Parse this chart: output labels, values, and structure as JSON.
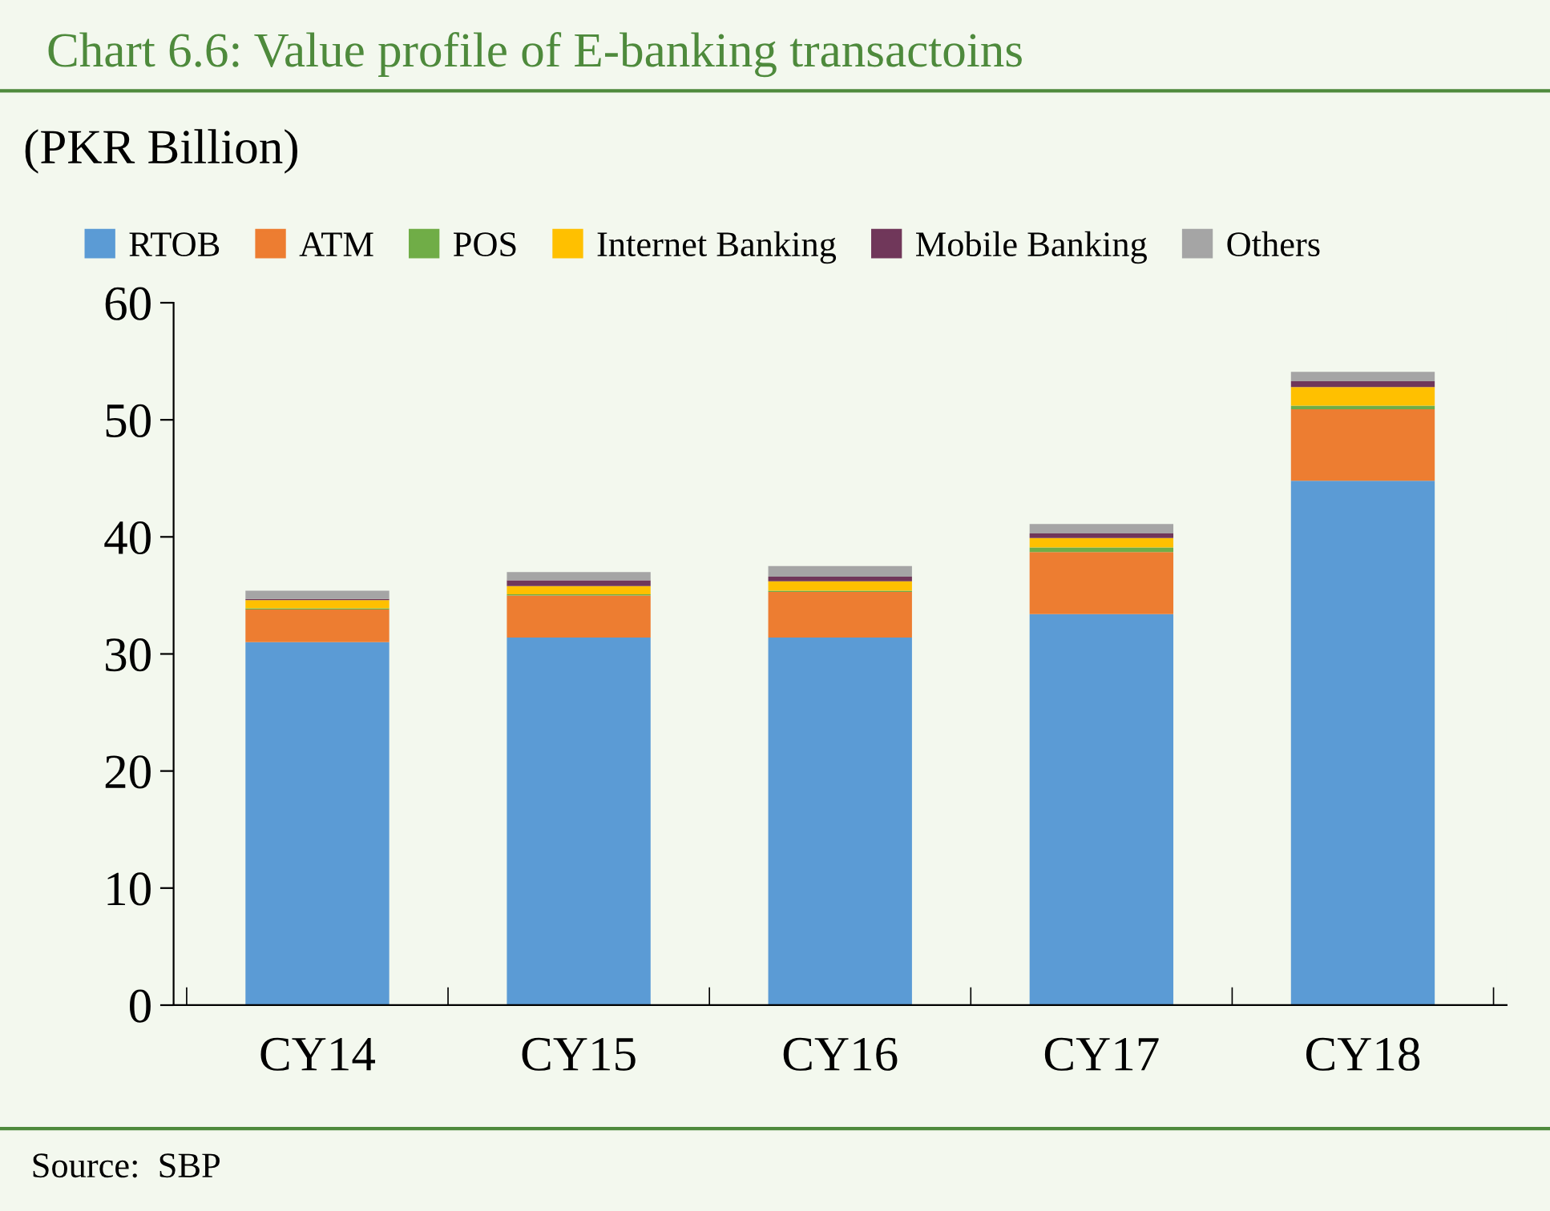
{
  "chart_data": {
    "type": "bar",
    "stacked": true,
    "title": "Chart 6.6: Value profile of E-banking transactoins",
    "ylabel": "(PKR Billion)",
    "categories": [
      "CY14",
      "CY15",
      "CY16",
      "CY17",
      "CY18"
    ],
    "series": [
      {
        "name": "RTOB",
        "color": "#5b9bd5",
        "values": [
          31.0,
          31.4,
          31.4,
          33.4,
          44.8
        ]
      },
      {
        "name": "ATM",
        "color": "#ed7d31",
        "values": [
          2.8,
          3.6,
          3.9,
          5.3,
          6.1
        ]
      },
      {
        "name": "POS",
        "color": "#70ad47",
        "values": [
          0.1,
          0.1,
          0.1,
          0.4,
          0.3
        ]
      },
      {
        "name": "Internet Banking",
        "color": "#ffc000",
        "values": [
          0.7,
          0.7,
          0.8,
          0.8,
          1.6
        ]
      },
      {
        "name": "Mobile Banking",
        "color": "#70375a",
        "values": [
          0.1,
          0.5,
          0.4,
          0.4,
          0.5
        ]
      },
      {
        "name": "Others",
        "color": "#a5a5a5",
        "values": [
          0.7,
          0.7,
          0.9,
          0.8,
          0.8
        ]
      }
    ],
    "ylim": [
      0,
      60
    ],
    "yticks": [
      0,
      10,
      20,
      30,
      40,
      50,
      60
    ],
    "grid": false,
    "legend": "top",
    "annotations": [
      "Source:  SBP"
    ]
  }
}
